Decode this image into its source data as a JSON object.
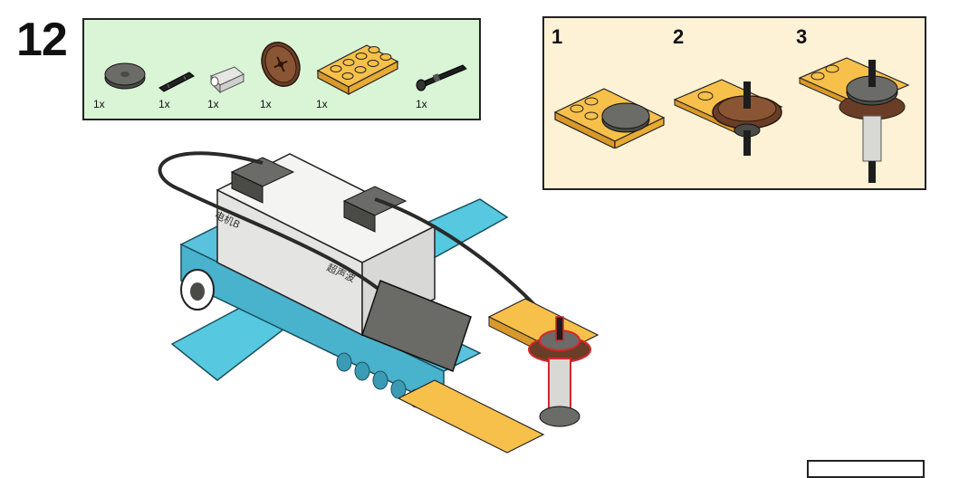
{
  "step": {
    "number": "12"
  },
  "parts_list": {
    "items": [
      {
        "name": "dark-gray-round-tile",
        "qty": "1x"
      },
      {
        "name": "black-axle",
        "qty": "1x"
      },
      {
        "name": "light-gray-bush",
        "qty": "1x"
      },
      {
        "name": "brown-crown-gear",
        "qty": "1x"
      },
      {
        "name": "yellow-plate-2x4",
        "qty": "1x"
      },
      {
        "name": "black-axle-pin",
        "qty": "1x"
      }
    ]
  },
  "sub_assembly": {
    "steps": [
      {
        "label": "1"
      },
      {
        "label": "2"
      },
      {
        "label": "3"
      }
    ]
  },
  "model": {
    "motor_label": "电机B",
    "sensor_label": "超声波"
  },
  "colors": {
    "parts_bg": "#d9f5d6",
    "sub_bg": "#fdf1d6",
    "yellow": "#f5b83d",
    "blue": "#56c8e0",
    "brown": "#7a4a2e",
    "dark_gray": "#5e5e5a",
    "white": "#f4f4f2",
    "highlight": "#d9262a"
  }
}
